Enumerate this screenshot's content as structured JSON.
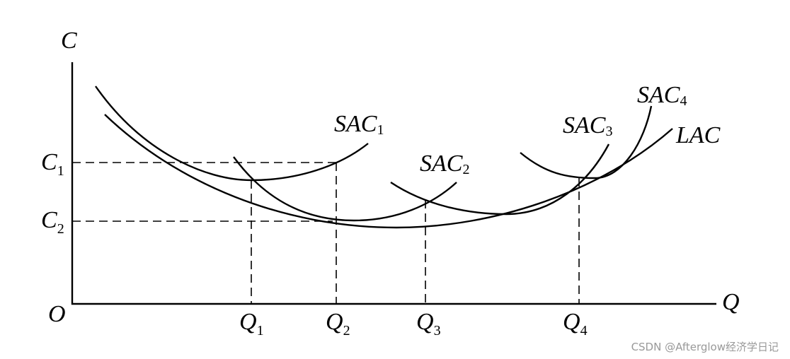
{
  "axes": {
    "y": "C",
    "x": "Q",
    "origin": "O"
  },
  "levels": [
    {
      "base": "C",
      "sub": "1"
    },
    {
      "base": "C",
      "sub": "2"
    }
  ],
  "quantities": [
    {
      "base": "Q",
      "sub": "1"
    },
    {
      "base": "Q",
      "sub": "2"
    },
    {
      "base": "Q",
      "sub": "3"
    },
    {
      "base": "Q",
      "sub": "4"
    }
  ],
  "curves": [
    {
      "base": "SAC",
      "sub": "1"
    },
    {
      "base": "SAC",
      "sub": "2"
    },
    {
      "base": "SAC",
      "sub": "3"
    },
    {
      "base": "SAC",
      "sub": "4"
    },
    {
      "base": "LAC"
    }
  ],
  "watermark": "CSDN @Afterglow经济学日记"
}
